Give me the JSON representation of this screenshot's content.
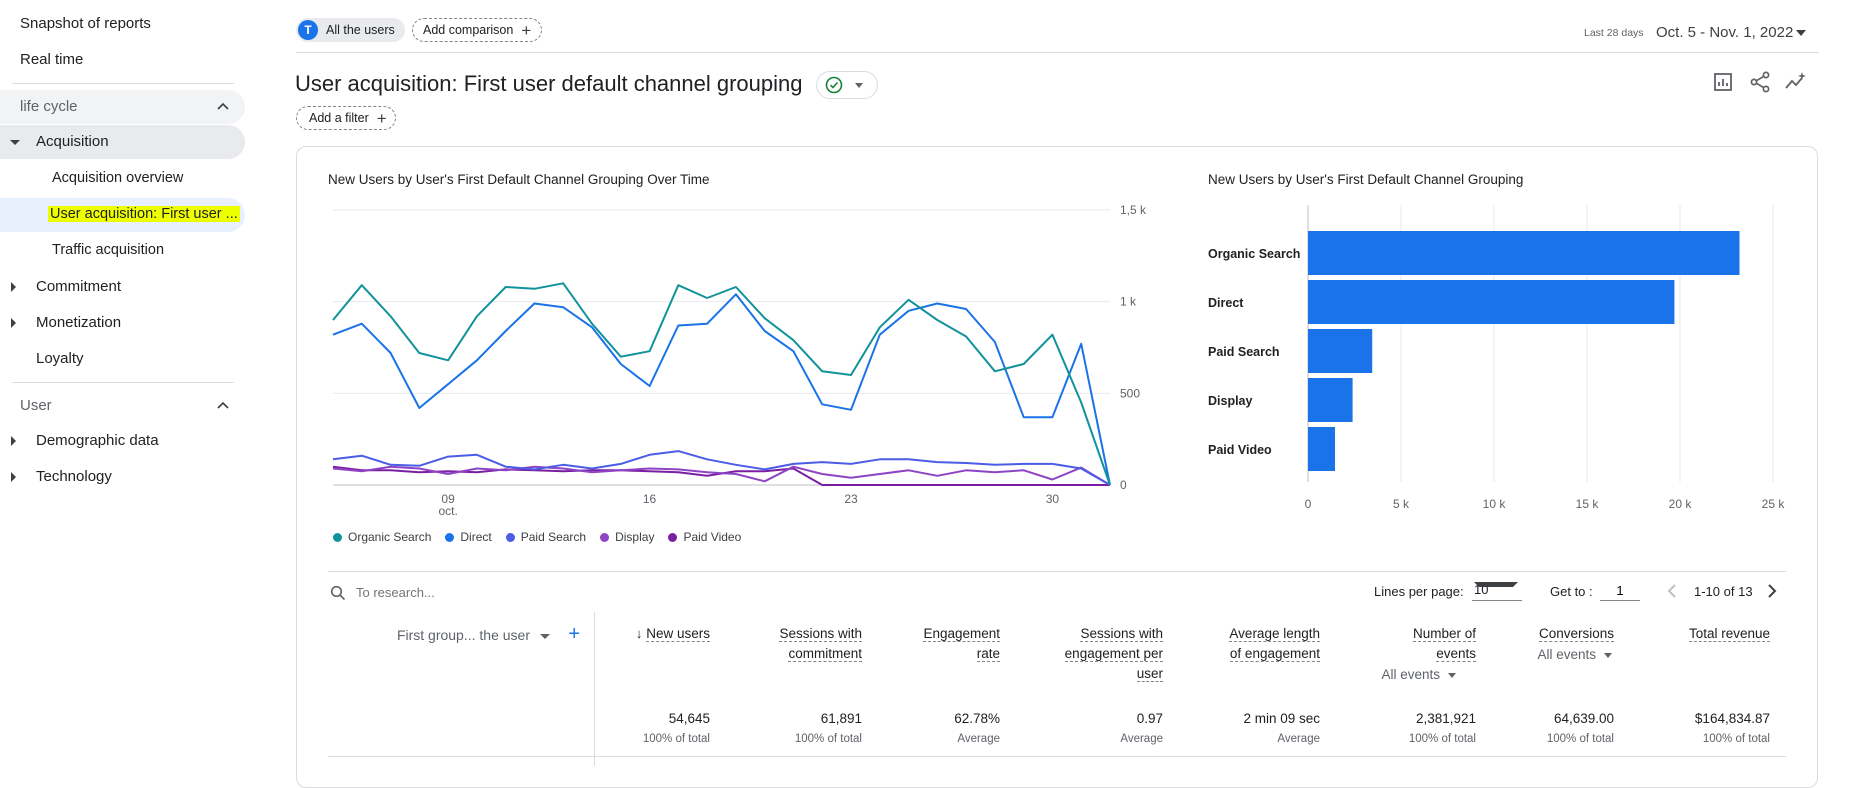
{
  "sidebar": {
    "top_links": [
      "Snapshot of reports",
      "Real time"
    ],
    "lifecycle": {
      "label": "life cycle",
      "acquisition": "Acquisition",
      "acquisition_children": [
        "Acquisition overview",
        "User acquisition: First user ...",
        "Traffic acquisition"
      ],
      "others": [
        "Commitment",
        "Monetization"
      ],
      "loyalty": "Loyalty"
    },
    "user": {
      "label": "User",
      "items": [
        "Demographic data",
        "Technology"
      ]
    }
  },
  "topbar": {
    "segment_avatar": "T",
    "segment_label": "All the users",
    "add_comparison": "Add comparison",
    "date_label": "Last 28 days",
    "date_range": "Oct. 5 - Nov. 1, 2022"
  },
  "page": {
    "title": "User acquisition: First user default channel grouping",
    "add_filter": "Add a filter"
  },
  "line_chart": {
    "title": "New Users by User's First Default Channel Grouping Over Time",
    "y_ticks": [
      "1,5 k",
      "1 k",
      "500",
      "0"
    ],
    "x_ticks": [
      {
        "label": "09",
        "sub": "oct.",
        "day": 4
      },
      {
        "label": "16",
        "sub": "",
        "day": 11
      },
      {
        "label": "23",
        "sub": "",
        "day": 18
      },
      {
        "label": "30",
        "sub": "",
        "day": 25
      }
    ],
    "legend": [
      "Organic Search",
      "Direct",
      "Paid Search",
      "Display",
      "Paid Video"
    ]
  },
  "bar_chart": {
    "title": "New Users by User's First Default Channel Grouping",
    "x_ticks": [
      "0",
      "5 k",
      "10 k",
      "15 k",
      "20 k",
      "25 k"
    ]
  },
  "chart_data": [
    {
      "type": "line",
      "title": "New Users by User's First Default Channel Grouping Over Time",
      "x": [
        "Oct 5",
        "Oct 6",
        "Oct 7",
        "Oct 8",
        "Oct 9",
        "Oct 10",
        "Oct 11",
        "Oct 12",
        "Oct 13",
        "Oct 14",
        "Oct 15",
        "Oct 16",
        "Oct 17",
        "Oct 18",
        "Oct 19",
        "Oct 20",
        "Oct 21",
        "Oct 22",
        "Oct 23",
        "Oct 24",
        "Oct 25",
        "Oct 26",
        "Oct 27",
        "Oct 28",
        "Oct 29",
        "Oct 30",
        "Oct 31",
        "Nov 1"
      ],
      "ylim": [
        0,
        1500
      ],
      "series": [
        {
          "name": "Organic Search",
          "color": "#12939a",
          "values": [
            900,
            1090,
            920,
            720,
            680,
            920,
            1080,
            1070,
            1100,
            880,
            700,
            730,
            1090,
            1020,
            1080,
            910,
            790,
            620,
            600,
            860,
            1010,
            900,
            810,
            620,
            660,
            820,
            450,
            0
          ]
        },
        {
          "name": "Direct",
          "color": "#1a73e8",
          "values": [
            820,
            880,
            720,
            420,
            550,
            680,
            840,
            990,
            970,
            860,
            660,
            540,
            870,
            880,
            1040,
            840,
            730,
            440,
            410,
            820,
            950,
            990,
            960,
            780,
            370,
            370,
            770,
            0
          ]
        },
        {
          "name": "Paid Search",
          "color": "#4b5ce6",
          "values": [
            140,
            160,
            110,
            105,
            155,
            165,
            100,
            85,
            110,
            90,
            115,
            165,
            185,
            140,
            110,
            85,
            115,
            125,
            115,
            140,
            140,
            125,
            120,
            110,
            115,
            115,
            90,
            0
          ]
        },
        {
          "name": "Display",
          "color": "#8e44c4",
          "values": [
            90,
            75,
            100,
            90,
            60,
            90,
            80,
            100,
            90,
            70,
            80,
            90,
            85,
            70,
            60,
            20,
            100,
            60,
            40,
            60,
            80,
            50,
            80,
            70,
            80,
            30,
            95,
            0
          ]
        },
        {
          "name": "Paid Video",
          "color": "#7b1fa2",
          "values": [
            100,
            80,
            80,
            70,
            75,
            70,
            85,
            80,
            75,
            80,
            80,
            75,
            70,
            50,
            75,
            75,
            90,
            0,
            0,
            0,
            0,
            0,
            0,
            0,
            0,
            0,
            0,
            0
          ]
        }
      ]
    },
    {
      "type": "bar",
      "orientation": "horizontal",
      "title": "New Users by User's First Default Channel Grouping",
      "categories": [
        "Organic Search",
        "Direct",
        "Paid Search",
        "Display",
        "Paid Video"
      ],
      "values": [
        23200,
        19700,
        3450,
        2400,
        1450
      ],
      "xlim": [
        0,
        25000
      ],
      "color": "#1a73e8"
    }
  ],
  "table": {
    "search_placeholder": "To research...",
    "lines_per_page_label": "Lines per page:",
    "lines_per_page": "10",
    "goto_label": "Get to :",
    "goto_value": "1",
    "page_range": "1-10 of 13",
    "dimension_label": "First group... the user",
    "columns": [
      {
        "l1": "New users",
        "l2": "",
        "l3": "",
        "sub": "",
        "total": "54,645",
        "total_sub": "100% of total"
      },
      {
        "l1": "Sessions with",
        "l2": "commitment",
        "l3": "",
        "sub": "",
        "total": "61,891",
        "total_sub": "100% of total"
      },
      {
        "l1": "Engagement",
        "l2": "rate",
        "l3": "",
        "sub": "",
        "total": "62.78%",
        "total_sub": "Average"
      },
      {
        "l1": "Sessions with",
        "l2": "engagement per",
        "l3": "user",
        "sub": "",
        "total": "0.97",
        "total_sub": "Average"
      },
      {
        "l1": "Average length",
        "l2": "of engagement",
        "l3": "",
        "sub": "",
        "total": "2 min 09 sec",
        "total_sub": "Average"
      },
      {
        "l1": "Number of",
        "l2": "events",
        "l3": "",
        "sub": "All events",
        "total": "2,381,921",
        "total_sub": "100% of total"
      },
      {
        "l1": "Conversions",
        "l2": "",
        "l3": "",
        "sub": "All events",
        "total": "64,639.00",
        "total_sub": "100% of total"
      },
      {
        "l1": "Total revenue",
        "l2": "",
        "l3": "",
        "sub": "",
        "total": "$164,834.87",
        "total_sub": "100% of total"
      }
    ]
  },
  "colors": {
    "accent": "#1a73e8",
    "highlight": "#eeff00",
    "selected_bg": "#e8f0fe",
    "section_bg": "#f1f3f4",
    "success": "#188038"
  }
}
